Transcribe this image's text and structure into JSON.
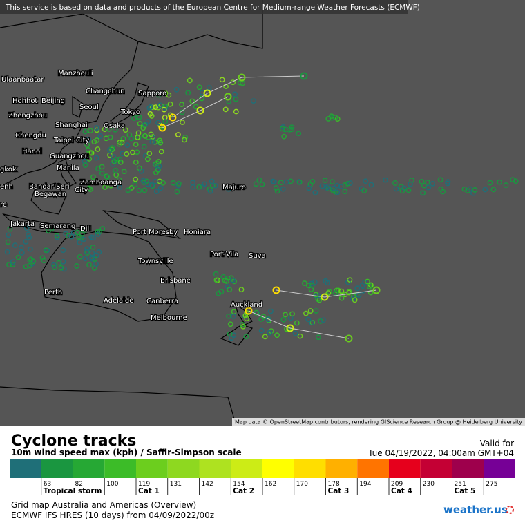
{
  "banner": "This service is based on data and products of the European Centre for Medium-range Weather Forecasts (ECMWF)",
  "map": {
    "places": [
      "Ulaanbaatar",
      "Manzhouli",
      "Hohhot",
      "Beijing",
      "Changchun",
      "Sapporo",
      "Seoul",
      "Zhengzhou",
      "Tokyo",
      "Shanghai",
      "Osaka",
      "Chengdu",
      "Taipei City",
      "Hanoi",
      "Guangzhou",
      "gkok",
      "Manila",
      "enh",
      "Zamboanga",
      "City",
      "Bandar Seri",
      "Begawan",
      "Majuro",
      "re",
      "Jakarta",
      "Semarang",
      "Dili",
      "Port Moresby",
      "Honiara",
      "Port Vila",
      "Suva",
      "Townsville",
      "Brisbane",
      "Perth",
      "Adelaide",
      "Canberra",
      "Auckland",
      "Melbourne"
    ],
    "attribution": "Map data © OpenStreetMap contributors, rendering GIScience Research Group @ Heidelberg University"
  },
  "legend": {
    "title": "Cyclone tracks",
    "subtitle": "10m wind speed max (kph) / Saffir-Simpson scale",
    "valid_label": "Valid for",
    "valid_time": "Tue 04/19/2022, 04:00am GMT+04",
    "colors": [
      "#1f6f78",
      "#1a9640",
      "#26a834",
      "#3cbc28",
      "#6cce1e",
      "#8ed820",
      "#aee220",
      "#ccec16",
      "#ffff00",
      "#ffde00",
      "#ffb000",
      "#ff7400",
      "#e6001c",
      "#c40034",
      "#9e004c",
      "#760096"
    ],
    "thresholds": [
      63,
      82,
      100,
      119,
      131,
      142,
      154,
      162,
      170,
      178,
      194,
      209,
      230,
      251,
      275
    ],
    "categories": [
      "Tropical storm",
      "Cat 1",
      "Cat 2",
      "Cat 3",
      "Cat 4",
      "Cat 5"
    ],
    "footer_lines": [
      "Grid map Australia and Americas (Overview)",
      "ECMWF IFS HRES (10 days) from 04/09/2022/00z"
    ],
    "brand": "weather.us"
  }
}
